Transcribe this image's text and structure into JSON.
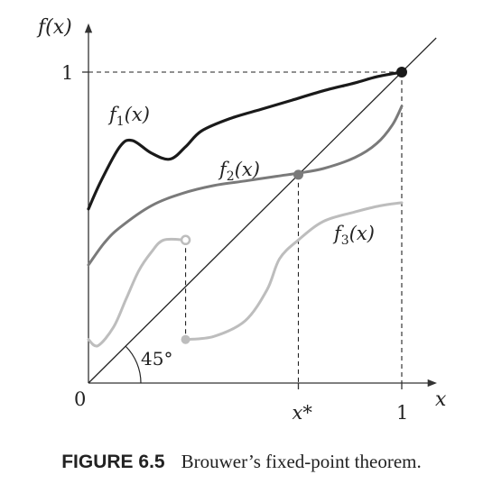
{
  "chart_data": {
    "type": "line",
    "title": "",
    "axes": {
      "ylabel": "f(x)",
      "xlabel": "x",
      "origin_label": "0",
      "ytick_label": "1",
      "xtick_labels": [
        "x*",
        "1"
      ],
      "xlim": [
        0,
        1
      ],
      "ylim": [
        0,
        1
      ]
    },
    "fixed_point_x": 0.67,
    "diagonal": {
      "name": "",
      "angle_label": "45°",
      "x": [
        0,
        1
      ],
      "y": [
        0,
        1
      ]
    },
    "series": [
      {
        "label": "f",
        "subscript": "1",
        "arg": "(x)",
        "color": "#1a1a1a",
        "x": [
          0,
          0.04,
          0.1,
          0.14,
          0.2,
          0.26,
          0.31,
          0.36,
          0.45,
          0.55,
          0.65,
          0.75,
          0.85,
          0.92,
          1.0
        ],
        "y": [
          0.56,
          0.65,
          0.76,
          0.78,
          0.74,
          0.72,
          0.76,
          0.81,
          0.85,
          0.88,
          0.91,
          0.94,
          0.965,
          0.985,
          1.0
        ]
      },
      {
        "label": "f",
        "subscript": "2",
        "arg": "(x)",
        "color": "#7a7a7a",
        "x": [
          0,
          0.05,
          0.1,
          0.2,
          0.3,
          0.4,
          0.5,
          0.6,
          0.67,
          0.75,
          0.85,
          0.92,
          0.97,
          1.0
        ],
        "y": [
          0.38,
          0.45,
          0.5,
          0.57,
          0.61,
          0.635,
          0.65,
          0.665,
          0.675,
          0.69,
          0.725,
          0.77,
          0.83,
          0.89
        ]
      },
      {
        "label": "f",
        "subscript": "3",
        "arg": "(x)",
        "color": "#bdbdbd",
        "x": [
          0,
          0.03,
          0.08,
          0.12,
          0.16,
          0.2,
          0.24,
          0.31,
          0.31,
          0.4,
          0.5,
          0.57,
          0.61,
          0.67,
          0.75,
          0.85,
          0.93,
          1.0
        ],
        "y": [
          0.14,
          0.12,
          0.18,
          0.27,
          0.36,
          0.42,
          0.46,
          0.46,
          0.14,
          0.15,
          0.2,
          0.3,
          0.4,
          0.46,
          0.52,
          0.55,
          0.57,
          0.58
        ],
        "jump_x": 0.31,
        "jump_open_y": 0.46,
        "jump_closed_y": 0.14
      }
    ]
  },
  "caption": {
    "label": "FIGURE 6.5",
    "text": "Brouwer’s fixed-point theorem."
  }
}
